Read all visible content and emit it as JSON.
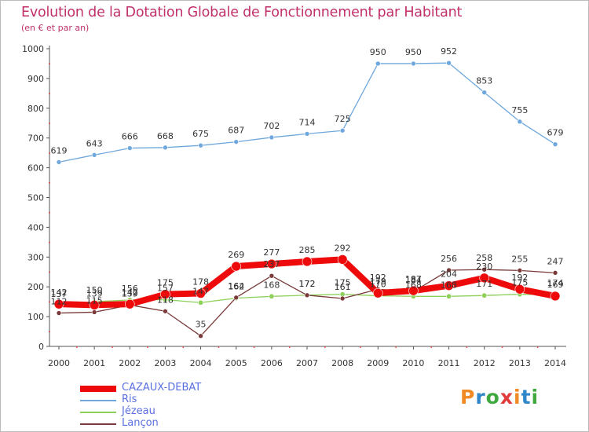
{
  "header": {
    "title": "Evolution de la Dotation Globale de Fonctionnement par Habitant",
    "subtitle": "(en € et par an)"
  },
  "logo": {
    "text": "Proxiti",
    "colors": [
      "#f08a24",
      "#2f86c8",
      "#3fa93f",
      "#e23b3b",
      "#f08a24",
      "#2f86c8",
      "#3fa93f"
    ]
  },
  "chart_data": {
    "type": "line",
    "x": [
      2000,
      2001,
      2002,
      2003,
      2004,
      2005,
      2006,
      2007,
      2008,
      2009,
      2010,
      2011,
      2012,
      2013,
      2014
    ],
    "ylim": [
      0,
      1000
    ],
    "yticks": [
      0,
      100,
      200,
      300,
      400,
      500,
      600,
      700,
      800,
      900,
      1000
    ],
    "grid": false,
    "legend_position": "bottom-left",
    "series": [
      {
        "name": "CAZAUX-DEBAT",
        "color": "#ee0a0a",
        "values": [
          142,
          139,
          142,
          175,
          178,
          269,
          277,
          285,
          292,
          179,
          187,
          204,
          230,
          192,
          169
        ],
        "labels_show": true
      },
      {
        "name": "Ris",
        "color": "#6fa8dc",
        "values": [
          619,
          643,
          666,
          668,
          675,
          687,
          702,
          714,
          725,
          950,
          950,
          952,
          853,
          755,
          679
        ],
        "labels_show": true
      },
      {
        "name": "Jézeau",
        "color": "#8ed05a",
        "values": [
          137,
          150,
          156,
          157,
          147,
          162,
          168,
          172,
          175,
          170,
          168,
          168,
          171,
          175,
          174
        ],
        "labels_show": true
      },
      {
        "name": "Lançon",
        "color": "#7a3a3a",
        "values": [
          112,
          115,
          139,
          118,
          35,
          164,
          237,
          172,
          161,
          192,
          184,
          256,
          258,
          255,
          247
        ],
        "labels_show": true
      }
    ]
  }
}
